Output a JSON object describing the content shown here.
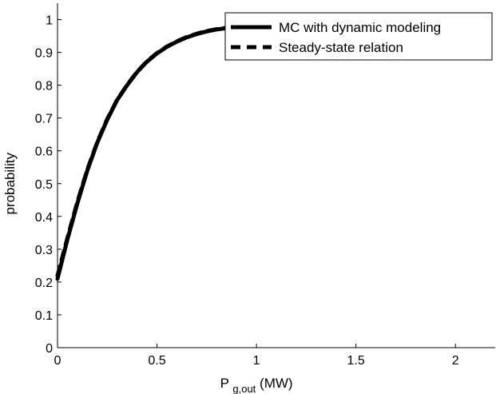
{
  "chart_data": {
    "type": "line",
    "title": "",
    "xlabel": {
      "main": "P",
      "subscript": "g,out",
      "suffix": " (MW)"
    },
    "ylabel": "probability",
    "xlim": [
      0,
      2.2
    ],
    "ylim": [
      0,
      1.05
    ],
    "xticks": [
      0,
      0.5,
      1,
      1.5,
      2
    ],
    "xtick_labels": [
      "0",
      "0.5",
      "1",
      "1.5",
      "2"
    ],
    "yticks": [
      0,
      0.1,
      0.2,
      0.3,
      0.4,
      0.5,
      0.6,
      0.7,
      0.8,
      0.9,
      1
    ],
    "ytick_labels": [
      "0",
      "0.1",
      "0.2",
      "0.3",
      "0.4",
      "0.5",
      "0.6",
      "0.7",
      "0.8",
      "0.9",
      "1"
    ],
    "grid": false,
    "legend_position": "top-right",
    "series": [
      {
        "name": "MC with dynamic modeling",
        "style": "solid",
        "color": "#000000",
        "x": [
          0,
          0.05,
          0.1,
          0.15,
          0.2,
          0.25,
          0.3,
          0.35,
          0.4,
          0.45,
          0.5,
          0.55,
          0.6,
          0.65,
          0.7,
          0.75,
          0.8,
          0.85,
          0.9,
          0.95,
          1.0
        ],
        "y": [
          0.21,
          0.33,
          0.44,
          0.54,
          0.625,
          0.695,
          0.755,
          0.8,
          0.84,
          0.872,
          0.897,
          0.917,
          0.933,
          0.946,
          0.956,
          0.964,
          0.97,
          0.974,
          0.977,
          0.978,
          0.979
        ]
      },
      {
        "name": "Steady-state relation",
        "style": "dashed",
        "color": "#000000",
        "x": [
          0,
          0.05,
          0.1,
          0.15,
          0.2,
          0.25,
          0.3,
          0.35,
          0.4,
          0.45,
          0.5,
          0.55,
          0.6,
          0.65,
          0.7,
          0.75,
          0.8,
          0.85,
          0.9,
          0.95,
          1.0
        ],
        "y": [
          0.22,
          0.335,
          0.445,
          0.543,
          0.627,
          0.697,
          0.756,
          0.801,
          0.841,
          0.873,
          0.898,
          0.918,
          0.934,
          0.947,
          0.957,
          0.965,
          0.971,
          0.975,
          0.977,
          0.978,
          0.979
        ]
      }
    ]
  }
}
